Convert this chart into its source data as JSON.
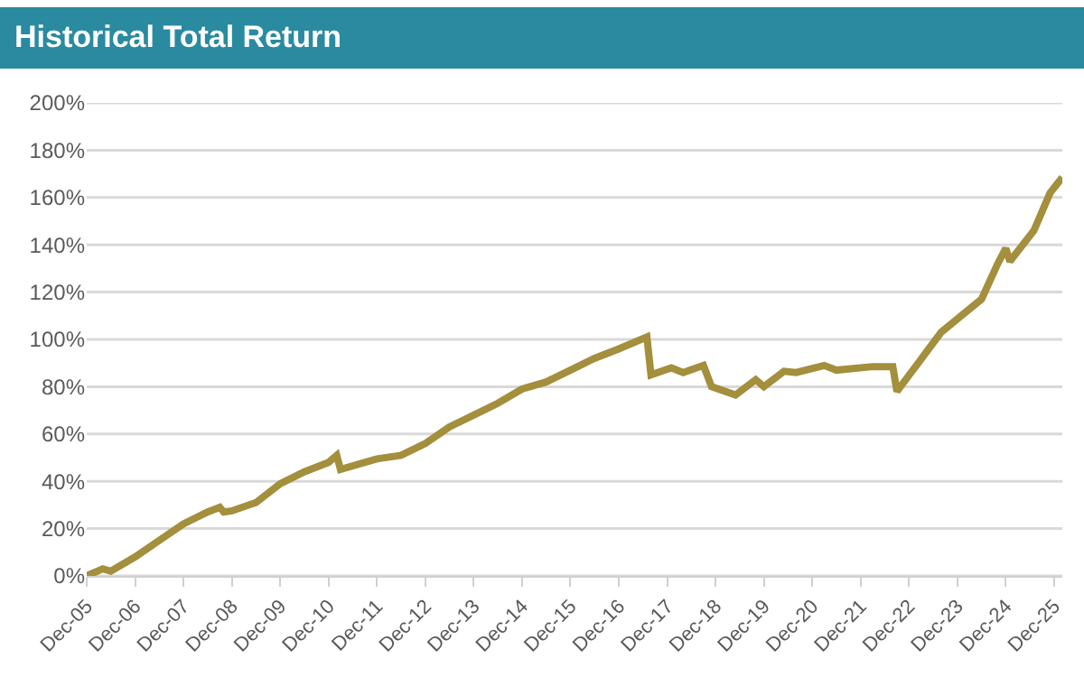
{
  "chart_data": {
    "type": "line",
    "title": "Historical Total Return",
    "x": [
      "2005-12",
      "2006-04",
      "2006-06",
      "2006-12",
      "2007-06",
      "2007-12",
      "2008-06",
      "2008-09",
      "2008-10",
      "2008-12",
      "2009-06",
      "2009-12",
      "2010-06",
      "2010-12",
      "2011-02",
      "2011-03",
      "2011-12",
      "2012-06",
      "2012-12",
      "2013-06",
      "2013-12",
      "2014-06",
      "2014-12",
      "2015-06",
      "2015-12",
      "2016-06",
      "2016-12",
      "2017-07",
      "2017-08",
      "2018-01",
      "2018-04",
      "2018-09",
      "2018-11",
      "2019-05",
      "2019-10",
      "2019-12",
      "2020-05",
      "2020-08",
      "2021-03",
      "2021-06",
      "2022-03",
      "2022-08",
      "2022-09",
      "2023-08",
      "2023-12",
      "2024-06",
      "2024-10",
      "2024-12",
      "2025-01",
      "2025-07",
      "2025-11",
      "2026-02"
    ],
    "series": [
      {
        "color": "#a38f3c",
        "values": [
          0,
          3,
          2,
          8,
          15,
          22,
          27,
          29,
          27,
          27.5,
          31,
          39,
          44,
          48,
          51,
          45,
          49.5,
          51,
          56,
          63,
          68,
          73,
          79,
          82,
          87,
          92,
          96,
          101,
          85,
          88,
          86,
          89,
          80,
          76.5,
          83,
          80,
          86.5,
          86,
          89,
          87,
          88.5,
          88.5,
          78,
          103,
          108.6,
          117,
          132,
          138.5,
          133,
          146,
          162,
          168.5
        ]
      }
    ],
    "xlim": [
      "2005-12",
      "2026-02"
    ],
    "xticks": [
      {
        "value": "2005-12",
        "label": "Dec-05"
      },
      {
        "value": "2006-12",
        "label": "Dec-06"
      },
      {
        "value": "2007-12",
        "label": "Dec-07"
      },
      {
        "value": "2008-12",
        "label": "Dec-08"
      },
      {
        "value": "2009-12",
        "label": "Dec-09"
      },
      {
        "value": "2010-12",
        "label": "Dec-10"
      },
      {
        "value": "2011-12",
        "label": "Dec-11"
      },
      {
        "value": "2012-12",
        "label": "Dec-12"
      },
      {
        "value": "2013-12",
        "label": "Dec-13"
      },
      {
        "value": "2014-12",
        "label": "Dec-14"
      },
      {
        "value": "2015-12",
        "label": "Dec-15"
      },
      {
        "value": "2016-12",
        "label": "Dec-16"
      },
      {
        "value": "2017-12",
        "label": "Dec-17"
      },
      {
        "value": "2018-12",
        "label": "Dec-18"
      },
      {
        "value": "2019-12",
        "label": "Dec-19"
      },
      {
        "value": "2020-12",
        "label": "Dec-20"
      },
      {
        "value": "2021-12",
        "label": "Dec-21"
      },
      {
        "value": "2022-12",
        "label": "Dec-22"
      },
      {
        "value": "2023-12",
        "label": "Dec-23"
      },
      {
        "value": "2024-12",
        "label": "Dec-24"
      },
      {
        "value": "2025-12",
        "label": "Dec-25"
      }
    ],
    "ylim": [
      0,
      200
    ],
    "yticks": [
      {
        "value": 0,
        "label": "0%"
      },
      {
        "value": 20,
        "label": "20%"
      },
      {
        "value": 40,
        "label": "40%"
      },
      {
        "value": 60,
        "label": "60%"
      },
      {
        "value": 80,
        "label": "80%"
      },
      {
        "value": 100,
        "label": "100%"
      },
      {
        "value": 120,
        "label": "120%"
      },
      {
        "value": 140,
        "label": "140%"
      },
      {
        "value": 160,
        "label": "160%"
      },
      {
        "value": 180,
        "label": "180%"
      },
      {
        "value": 200,
        "label": "200%"
      }
    ],
    "grid": "y",
    "line_style": "solid",
    "marker": "none"
  }
}
